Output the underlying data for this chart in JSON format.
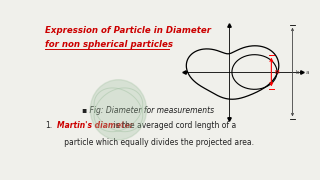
{
  "bg_color": "#f0f0eb",
  "title_line1": "Expression of Particle in Diameter",
  "title_line2": "for non spherical particles",
  "title_color": "#cc0000",
  "bullet_text": "▪ Fig: Diameter for measurements",
  "point1_label": "Martin's diameter",
  "point1_label_color": "#cc0000",
  "point1_text_part2": " is the averaged cord length of a",
  "point1_text_part3": "   particle which equally divides the projected area.",
  "point1_number": "1.",
  "text_color": "#222222",
  "watermark_color": "#a0c0a0"
}
